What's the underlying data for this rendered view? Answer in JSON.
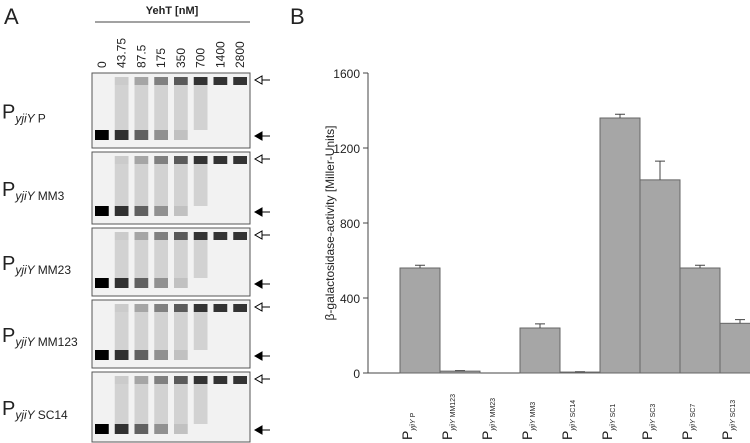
{
  "panel_a": {
    "label": "A",
    "header": "YehT [nM]",
    "lanes": [
      "0",
      "43.75",
      "87.5",
      "175",
      "350",
      "700",
      "1400",
      "2800"
    ],
    "rows": [
      {
        "main": "P",
        "sub": "yjiY",
        "variant": "P"
      },
      {
        "main": "P",
        "sub": "yjiY",
        "variant": "MM3"
      },
      {
        "main": "P",
        "sub": "yjiY",
        "variant": "MM23"
      },
      {
        "main": "P",
        "sub": "yjiY",
        "variant": "MM123"
      },
      {
        "main": "P",
        "sub": "yjiY",
        "variant": "SC14"
      }
    ]
  },
  "chart_data": {
    "type": "bar",
    "panel_label": "B",
    "y_label": "β-galactosidase-activity [Miller-Units]",
    "category_prefix": "P",
    "category_sub": "yjiY",
    "categories": [
      "P",
      "MM123",
      "MM23",
      "MM3",
      "SC14",
      "SC1",
      "SC3",
      "SC7",
      "SC13"
    ],
    "values": [
      560,
      10,
      0,
      240,
      5,
      1360,
      1030,
      560,
      265
    ],
    "errors": [
      15,
      3,
      0,
      22,
      2,
      20,
      100,
      15,
      20
    ],
    "color": "#a6a6a6",
    "ylim": [
      0,
      1600
    ],
    "yticks": [
      0,
      400,
      800,
      1200,
      1600
    ]
  }
}
